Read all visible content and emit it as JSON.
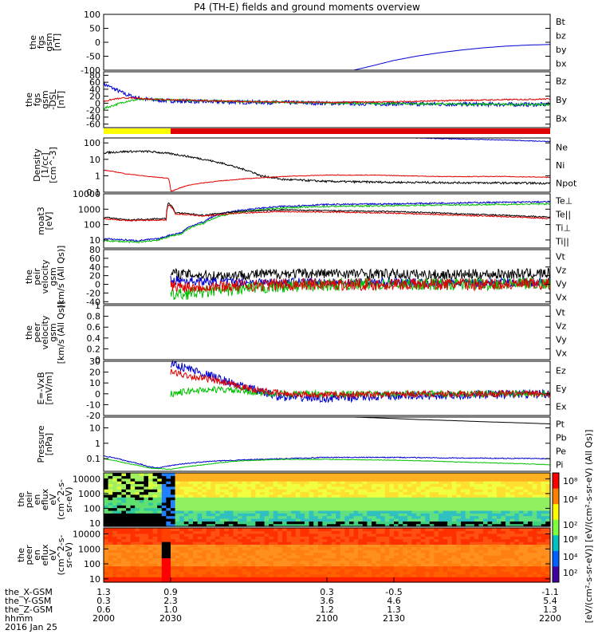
{
  "title": "P4 (TH-E) fields and ground moments overview",
  "colors": {
    "black": "#000000",
    "red": "#e00000",
    "green": "#00c000",
    "blue": "#0000d0",
    "yellow": "#ffff00"
  },
  "chart_data": [
    {
      "id": "p1",
      "type": "line",
      "ylabel": [
        "the",
        "fgs",
        "gsm",
        "[nT]"
      ],
      "ylim": [
        -100,
        100
      ],
      "yticks": [
        100,
        50,
        0,
        -50,
        -100
      ],
      "legend": [
        {
          "name": "Bt",
          "color": "black"
        },
        {
          "name": "bz",
          "color": "red"
        },
        {
          "name": "by",
          "color": "green"
        },
        {
          "name": "bx",
          "color": "blue"
        }
      ],
      "series": [
        {
          "name": "bx",
          "color": "blue",
          "x": [
            2112,
            2120,
            2130,
            2140,
            2150,
            2160,
            2170,
            2180,
            2190,
            2200
          ],
          "y": [
            -100,
            -85,
            -65,
            -50,
            -38,
            -28,
            -20,
            -14,
            -10,
            -8
          ]
        }
      ]
    },
    {
      "id": "p2",
      "type": "line",
      "ylabel": [
        "the",
        "fgs",
        "gsm",
        "-DSL",
        "[nT]"
      ],
      "ylim": [
        -70,
        90
      ],
      "yticks": [
        80,
        60,
        40,
        20,
        0,
        -20,
        -40,
        -60
      ],
      "legend": [
        {
          "name": "Bz",
          "color": "red"
        },
        {
          "name": "By",
          "color": "green"
        },
        {
          "name": "Bx",
          "color": "blue"
        }
      ],
      "series": [
        {
          "name": "Bx",
          "color": "blue",
          "noise": 6,
          "x": [
            2000,
            2005,
            2010,
            2015,
            2020,
            2030,
            2040,
            2060,
            2080,
            2100,
            2130,
            2160,
            2200
          ],
          "y": [
            55,
            40,
            25,
            15,
            10,
            7,
            5,
            3,
            2,
            0,
            -2,
            -3,
            -4
          ]
        },
        {
          "name": "By",
          "color": "green",
          "noise": 3,
          "x": [
            2000,
            2005,
            2010,
            2015,
            2020,
            2030,
            2040,
            2060,
            2080,
            2100,
            2130,
            2160,
            2200
          ],
          "y": [
            -15,
            -5,
            5,
            10,
            11,
            10,
            8,
            5,
            3,
            1,
            -1,
            -3,
            -4
          ]
        },
        {
          "name": "Bz",
          "color": "red",
          "noise": 2,
          "x": [
            2000,
            2005,
            2010,
            2015,
            2020,
            2030,
            2040,
            2060,
            2080,
            2100,
            2130,
            2160,
            2200
          ],
          "y": [
            5,
            12,
            15,
            14,
            12,
            10,
            8,
            5,
            3,
            2,
            4,
            8,
            12
          ]
        }
      ]
    },
    {
      "id": "p3",
      "type": "line",
      "ylog": true,
      "ylabel": [
        "Density",
        "[1/cc]",
        "[cm^-3]"
      ],
      "ylim": [
        0.1,
        200
      ],
      "yticks": [
        100.0,
        10.0,
        1.0,
        0.1
      ],
      "legend": [
        {
          "name": "Ne",
          "color": "red"
        },
        {
          "name": "Ni",
          "color": "black"
        },
        {
          "name": "Npot",
          "color": "blue"
        }
      ],
      "series": [
        {
          "name": "Ni",
          "color": "black",
          "noise": 0.06,
          "x": [
            2000,
            2010,
            2020,
            2030,
            2040,
            2050,
            2060,
            2070,
            2080,
            2100,
            2130,
            2160,
            2200
          ],
          "y": [
            25,
            30,
            30,
            22,
            13,
            7,
            3,
            1,
            0.6,
            0.45,
            0.4,
            0.38,
            0.35
          ]
        },
        {
          "name": "Ne",
          "color": "red",
          "noise": 0.02,
          "x": [
            2000,
            2010,
            2020,
            2029,
            2030,
            2031,
            2040,
            2060,
            2080,
            2100,
            2120,
            2150,
            2180,
            2200
          ],
          "y": [
            2.2,
            1.3,
            0.9,
            0.7,
            0.12,
            0.12,
            0.3,
            0.6,
            0.9,
            1.1,
            1.1,
            0.9,
            0.9,
            0.8
          ]
        },
        {
          "name": "Npot",
          "color": "blue",
          "noise": 0.02,
          "x": [
            2140,
            2160,
            2180,
            2200
          ],
          "y": [
            200,
            170,
            150,
            120
          ]
        }
      ]
    },
    {
      "id": "p4",
      "type": "line",
      "ylog": true,
      "ylabel": [
        "moat3",
        "[eV]"
      ],
      "ylim": [
        3,
        10000
      ],
      "yticks": [
        10000,
        1000,
        100,
        10
      ],
      "legend": [
        {
          "name": "Te⊥",
          "color": "red"
        },
        {
          "name": "Te||",
          "color": "black"
        },
        {
          "name": "Ti⊥",
          "color": "blue"
        },
        {
          "name": "Ti||",
          "color": "green"
        }
      ],
      "series": [
        {
          "name": "Ti⊥",
          "color": "blue",
          "noise": 0.05,
          "x": [
            2000,
            2015,
            2025,
            2035,
            2045,
            2060,
            2080,
            2100,
            2130,
            2160,
            2200
          ],
          "y": [
            12,
            9,
            12,
            30,
            150,
            800,
            1500,
            2000,
            2200,
            2600,
            3000
          ]
        },
        {
          "name": "Ti||",
          "color": "green",
          "noise": 0.05,
          "x": [
            2000,
            2015,
            2025,
            2035,
            2045,
            2060,
            2080,
            2100,
            2130,
            2160,
            2200
          ],
          "y": [
            9,
            7,
            10,
            25,
            120,
            600,
            1200,
            1500,
            1700,
            1900,
            2200
          ]
        },
        {
          "name": "Te||",
          "color": "black",
          "noise": 0.04,
          "x": [
            2000,
            2010,
            2028,
            2029,
            2032,
            2045,
            2060,
            2080,
            2100,
            2130,
            2160,
            2200
          ],
          "y": [
            300,
            200,
            250,
            2500,
            600,
            400,
            700,
            900,
            800,
            700,
            500,
            300
          ]
        },
        {
          "name": "Te⊥",
          "color": "red",
          "noise": 0.04,
          "x": [
            2000,
            2010,
            2028,
            2029,
            2032,
            2045,
            2060,
            2080,
            2100,
            2130,
            2160,
            2200
          ],
          "y": [
            250,
            180,
            200,
            2000,
            500,
            350,
            550,
            700,
            650,
            550,
            400,
            250
          ]
        }
      ]
    },
    {
      "id": "p5",
      "type": "line",
      "ylabel": [
        "the",
        "peir",
        "velocity",
        "gsm",
        "[km/s (All Qs)]"
      ],
      "ylim": [
        -45,
        80
      ],
      "yticks": [
        80,
        60,
        40,
        20,
        0,
        -20,
        -40
      ],
      "legend": [
        {
          "name": "Vt",
          "color": "black"
        },
        {
          "name": "Vz",
          "color": "red"
        },
        {
          "name": "Vy",
          "color": "green"
        },
        {
          "name": "Vx",
          "color": "blue"
        }
      ],
      "series": [
        {
          "name": "Vt",
          "color": "black",
          "noise": 12,
          "x": [
            2030,
            2050,
            2080,
            2110,
            2150,
            2200
          ],
          "y": [
            25,
            20,
            25,
            25,
            22,
            25
          ]
        },
        {
          "name": "Vx",
          "color": "blue",
          "noise": 10,
          "x": [
            2030,
            2050,
            2080,
            2110,
            2150,
            2200
          ],
          "y": [
            10,
            5,
            5,
            5,
            3,
            5
          ]
        },
        {
          "name": "Vy",
          "color": "green",
          "noise": 14,
          "x": [
            2030,
            2050,
            2080,
            2110,
            2150,
            2200
          ],
          "y": [
            -25,
            -15,
            -5,
            0,
            0,
            2
          ]
        },
        {
          "name": "Vz",
          "color": "red",
          "noise": 14,
          "x": [
            2030,
            2050,
            2080,
            2110,
            2150,
            2200
          ],
          "y": [
            -5,
            -5,
            0,
            0,
            0,
            0
          ]
        }
      ]
    },
    {
      "id": "p6",
      "type": "line",
      "ylabel": [
        "the",
        "peer",
        "velocity",
        "gsm",
        "[km/s (All Qs)]"
      ],
      "ylim": [
        0,
        1
      ],
      "yticks": [
        1.0,
        0.8,
        0.6,
        0.4,
        0.2,
        0.0
      ],
      "legend": [
        {
          "name": "Vt",
          "color": "black"
        },
        {
          "name": "Vz",
          "color": "red"
        },
        {
          "name": "Vy",
          "color": "green"
        },
        {
          "name": "Vx",
          "color": "blue"
        }
      ],
      "series": []
    },
    {
      "id": "p7",
      "type": "line",
      "ylabel": [
        "E=-VxB",
        "[mV/m]"
      ],
      "ylim": [
        -20,
        30
      ],
      "yticks": [
        30,
        20,
        10,
        0,
        -10,
        -20
      ],
      "legend": [
        {
          "name": "Ez",
          "color": "red"
        },
        {
          "name": "Ey",
          "color": "green"
        },
        {
          "name": "Ex",
          "color": "blue"
        }
      ],
      "series": [
        {
          "name": "Ex",
          "color": "blue",
          "noise": 4,
          "x": [
            2030,
            2040,
            2050,
            2060,
            2070,
            2080,
            2100,
            2130,
            2160,
            2200
          ],
          "y": [
            28,
            22,
            15,
            8,
            2,
            -3,
            -4,
            -2,
            -1,
            0
          ]
        },
        {
          "name": "Ey",
          "color": "green",
          "noise": 3,
          "x": [
            2030,
            2040,
            2050,
            2060,
            2070,
            2080,
            2100,
            2130,
            2160,
            2200
          ],
          "y": [
            0,
            3,
            4,
            3,
            1,
            0,
            0,
            0,
            0,
            0
          ]
        },
        {
          "name": "Ez",
          "color": "red",
          "noise": 3,
          "x": [
            2030,
            2040,
            2050,
            2060,
            2070,
            2080,
            2100,
            2130,
            2160,
            2200
          ],
          "y": [
            20,
            16,
            12,
            7,
            3,
            0,
            -1,
            0,
            0,
            0
          ]
        }
      ]
    },
    {
      "id": "p8",
      "type": "line",
      "ylog": true,
      "ylabel": [
        "Pressure",
        "[nPa]"
      ],
      "ylim": [
        0.015,
        50
      ],
      "yticks": [
        10.0,
        1.0,
        0.1
      ],
      "legend": [
        {
          "name": "Pt",
          "color": "black"
        },
        {
          "name": "Pb",
          "color": "red"
        },
        {
          "name": "Pe",
          "color": "green"
        },
        {
          "name": "Pi",
          "color": "blue"
        }
      ],
      "series": [
        {
          "name": "Pt",
          "color": "black",
          "noise": 0,
          "x": [
            2112,
            2140,
            2170,
            2200
          ],
          "y": [
            50,
            35,
            25,
            18
          ]
        },
        {
          "name": "Pi",
          "color": "blue",
          "noise": 0.03,
          "x": [
            2000,
            2010,
            2020,
            2025,
            2032,
            2050,
            2080,
            2100,
            2130,
            2160,
            2200
          ],
          "y": [
            0.15,
            0.07,
            0.03,
            0.025,
            0.04,
            0.07,
            0.1,
            0.12,
            0.12,
            0.11,
            0.1
          ]
        },
        {
          "name": "Pe",
          "color": "green",
          "noise": 0.02,
          "x": [
            2000,
            2010,
            2020,
            2030,
            2045,
            2060,
            2080,
            2100,
            2130,
            2160,
            2200
          ],
          "y": [
            0.1,
            0.05,
            0.025,
            0.02,
            0.04,
            0.07,
            0.09,
            0.09,
            0.08,
            0.06,
            0.04
          ]
        }
      ]
    },
    {
      "id": "s1",
      "type": "heatmap",
      "ylog": true,
      "ylabel": [
        "the",
        "peir",
        "en",
        "eflux",
        "eV",
        "(cm^2-s-",
        "sr-eV)"
      ],
      "ylim": [
        6,
        25000
      ],
      "yticks": [
        10000,
        1000,
        100,
        10
      ]
    },
    {
      "id": "s2",
      "type": "heatmap",
      "ylog": true,
      "ylabel": [
        "the",
        "peer",
        "en",
        "eflux",
        "eV",
        "(cm^2-s-",
        "sr-eV)"
      ],
      "ylim": [
        6,
        25000
      ],
      "yticks": [
        10000,
        1000,
        100,
        10
      ]
    }
  ],
  "colorbar": {
    "ticks": [
      "10⁸",
      "10⁴",
      "10²"
    ],
    "label": "[eV/(cm²-s-sr-eV)] [eV/(cm²-s-sr-eV) (All Qs)]"
  },
  "mode_bar": {
    "yellow_until": 2030
  },
  "xaxis": {
    "range": [
      2000,
      2200
    ],
    "ticks": [
      2000,
      2030,
      2100,
      2130,
      2200
    ],
    "rows": [
      {
        "label": "the_X-GSM",
        "values": [
          "1.3",
          "0.9",
          "0.3",
          "-0.5",
          "-1.1"
        ]
      },
      {
        "label": "the_Y-GSM",
        "values": [
          "0.3",
          "2.3",
          "3.6",
          "4.6",
          "5.4"
        ]
      },
      {
        "label": "the_Z-GSM",
        "values": [
          "0.6",
          "1.0",
          "1.2",
          "1.3",
          "1.3"
        ]
      },
      {
        "label": "hhmm",
        "values": [
          "2000",
          "2030",
          "2100",
          "2130",
          "2200"
        ]
      }
    ],
    "date": "2016 Jan 25"
  }
}
